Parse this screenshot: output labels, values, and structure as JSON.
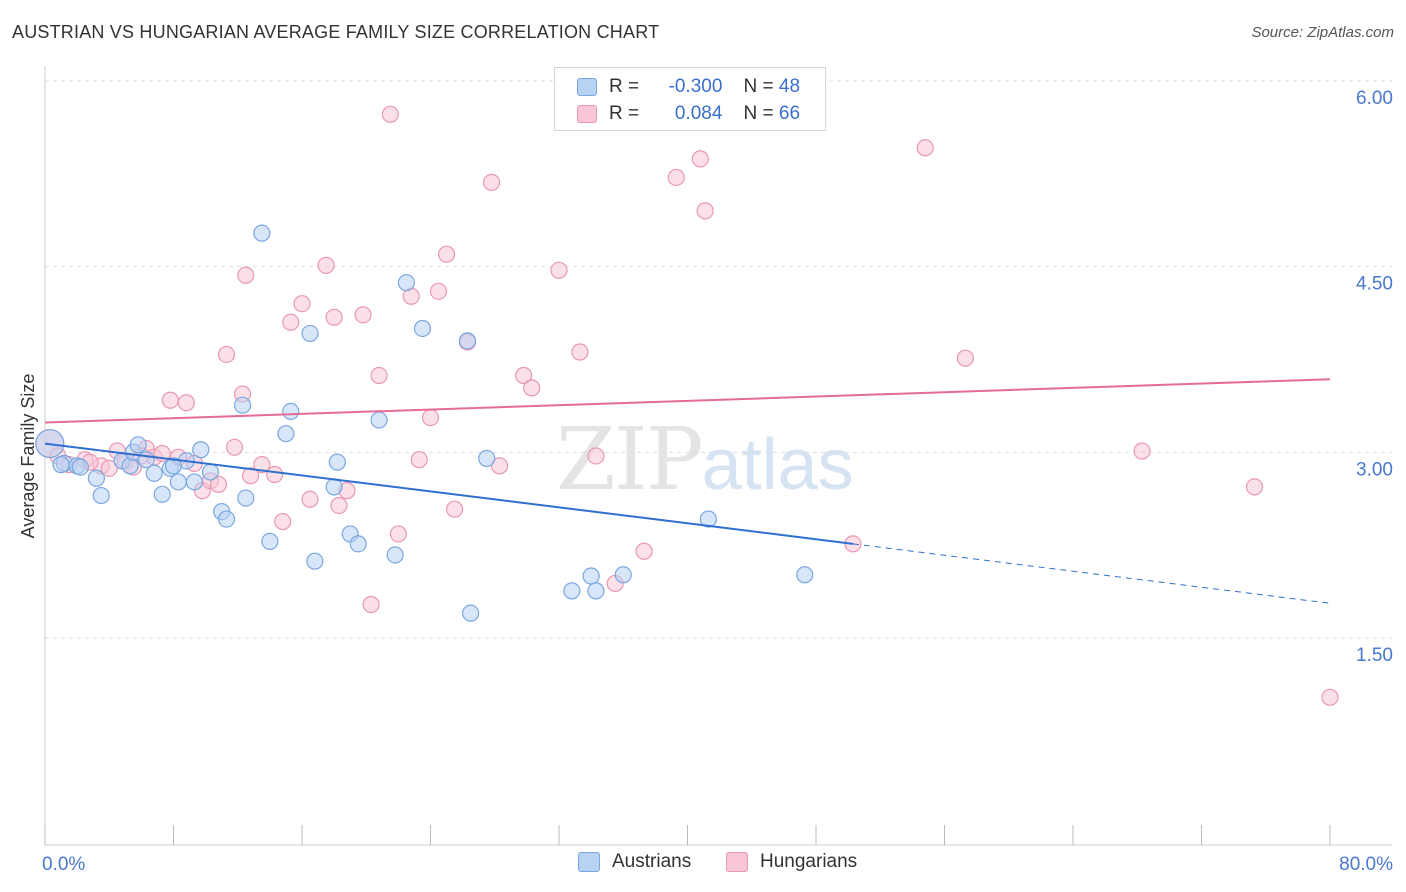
{
  "title": "AUSTRIAN VS HUNGARIAN AVERAGE FAMILY SIZE CORRELATION CHART",
  "source": "Source: ZipAtlas.com",
  "watermark": {
    "zip": "ZIP",
    "atlas": "atlas"
  },
  "colors": {
    "blue_fill": "#b8d2f4",
    "blue_stroke": "#7aa7e0",
    "blue_line": "#2e6fd0",
    "pink_fill": "#f8c6d6",
    "pink_stroke": "#e898b2",
    "pink_line": "#e66b98",
    "tick_label": "#4a78d0",
    "grid": "#dddddd"
  },
  "legend_top": {
    "rows": [
      {
        "r_label": "R =",
        "r_value": "-0.300",
        "n_label": "N =",
        "n_value": "48"
      },
      {
        "r_label": "R =",
        "r_value": "0.084",
        "n_label": "N =",
        "n_value": "66"
      }
    ]
  },
  "chart_data": {
    "type": "scatter",
    "xlabel": "",
    "ylabel": "Average Family Size",
    "xlim": [
      0,
      80
    ],
    "ylim": [
      0.3,
      6.4
    ],
    "x_tick_labels": {
      "min": "0.0%",
      "max": "80.0%"
    },
    "y_ticks": [
      1.5,
      3.0,
      4.5,
      6.0
    ],
    "y_tick_labels": [
      "1.50",
      "3.00",
      "4.50",
      "6.00"
    ],
    "grid": true,
    "legend_placement": "bottom",
    "series": [
      {
        "name": "Austrians",
        "trend": {
          "x0": 0,
          "y0": 3.2,
          "x1": 50.3,
          "y1": 2.39,
          "dashed_to_x": 80,
          "dashed_to_y": 1.91
        },
        "points": [
          [
            0.3,
            3.2
          ],
          [
            1.2,
            3.04
          ],
          [
            2.0,
            3.02
          ],
          [
            2.2,
            3.01
          ],
          [
            3.2,
            2.92
          ],
          [
            3.5,
            2.78
          ],
          [
            4.8,
            3.06
          ],
          [
            5.3,
            3.02
          ],
          [
            5.5,
            3.13
          ],
          [
            5.8,
            3.19
          ],
          [
            6.3,
            3.07
          ],
          [
            6.8,
            2.96
          ],
          [
            7.3,
            2.79
          ],
          [
            7.8,
            3.0
          ],
          [
            8.3,
            2.89
          ],
          [
            8.8,
            3.06
          ],
          [
            9.3,
            2.89
          ],
          [
            9.7,
            3.15
          ],
          [
            10.3,
            2.97
          ],
          [
            11.0,
            2.65
          ],
          [
            11.3,
            2.59
          ],
          [
            12.5,
            2.76
          ],
          [
            12.3,
            3.51
          ],
          [
            13.5,
            4.9
          ],
          [
            14.0,
            2.41
          ],
          [
            15.0,
            3.28
          ],
          [
            15.3,
            3.46
          ],
          [
            16.5,
            4.09
          ],
          [
            16.8,
            2.25
          ],
          [
            18.0,
            2.85
          ],
          [
            18.2,
            3.05
          ],
          [
            19.0,
            2.47
          ],
          [
            19.5,
            2.39
          ],
          [
            20.8,
            3.39
          ],
          [
            21.8,
            2.3
          ],
          [
            22.5,
            4.5
          ],
          [
            23.5,
            4.13
          ],
          [
            26.3,
            4.03
          ],
          [
            26.5,
            1.83
          ],
          [
            27.5,
            3.08
          ],
          [
            32.8,
            2.01
          ],
          [
            34.0,
            2.13
          ],
          [
            34.3,
            2.01
          ],
          [
            36.0,
            2.14
          ],
          [
            41.3,
            2.59
          ],
          [
            47.3,
            2.14
          ],
          [
            1.0,
            3.03
          ],
          [
            8.0,
            3.02
          ]
        ]
      },
      {
        "name": "Hungarians",
        "trend": {
          "x0": 0,
          "y0": 3.37,
          "x1": 80,
          "y1": 3.72
        },
        "points": [
          [
            0.3,
            3.2
          ],
          [
            0.8,
            3.1
          ],
          [
            1.5,
            3.03
          ],
          [
            2.5,
            3.07
          ],
          [
            3.5,
            3.02
          ],
          [
            4.5,
            3.14
          ],
          [
            5.0,
            3.06
          ],
          [
            5.5,
            3.01
          ],
          [
            6.3,
            3.16
          ],
          [
            6.8,
            3.09
          ],
          [
            7.3,
            3.12
          ],
          [
            7.8,
            3.55
          ],
          [
            8.3,
            3.09
          ],
          [
            8.8,
            3.53
          ],
          [
            9.3,
            3.04
          ],
          [
            9.8,
            2.82
          ],
          [
            10.3,
            2.9
          ],
          [
            10.8,
            2.87
          ],
          [
            11.3,
            3.92
          ],
          [
            11.8,
            3.17
          ],
          [
            12.3,
            3.6
          ],
          [
            12.5,
            4.56
          ],
          [
            12.8,
            2.94
          ],
          [
            13.5,
            3.03
          ],
          [
            14.3,
            2.95
          ],
          [
            14.8,
            2.57
          ],
          [
            15.3,
            4.18
          ],
          [
            16.0,
            4.33
          ],
          [
            16.5,
            2.75
          ],
          [
            17.5,
            4.64
          ],
          [
            18.0,
            4.22
          ],
          [
            18.3,
            2.7
          ],
          [
            18.8,
            2.82
          ],
          [
            19.8,
            4.24
          ],
          [
            20.3,
            1.9
          ],
          [
            20.8,
            3.75
          ],
          [
            21.5,
            5.86
          ],
          [
            22.0,
            2.47
          ],
          [
            22.8,
            4.39
          ],
          [
            23.3,
            3.07
          ],
          [
            24.0,
            3.41
          ],
          [
            24.5,
            4.43
          ],
          [
            25.0,
            4.73
          ],
          [
            25.5,
            2.67
          ],
          [
            26.3,
            4.02
          ],
          [
            27.8,
            5.31
          ],
          [
            28.3,
            3.02
          ],
          [
            29.8,
            3.75
          ],
          [
            30.3,
            3.65
          ],
          [
            32.0,
            4.6
          ],
          [
            33.3,
            3.94
          ],
          [
            34.3,
            3.1
          ],
          [
            35.5,
            2.07
          ],
          [
            37.3,
            2.33
          ],
          [
            39.3,
            5.35
          ],
          [
            40.8,
            5.5
          ],
          [
            41.1,
            5.08
          ],
          [
            50.3,
            2.39
          ],
          [
            54.8,
            5.59
          ],
          [
            57.3,
            3.89
          ],
          [
            68.3,
            3.14
          ],
          [
            75.3,
            2.85
          ],
          [
            80.0,
            1.15
          ],
          [
            4.0,
            3.0
          ],
          [
            6.0,
            3.1
          ],
          [
            2.8,
            3.05
          ]
        ]
      }
    ]
  }
}
